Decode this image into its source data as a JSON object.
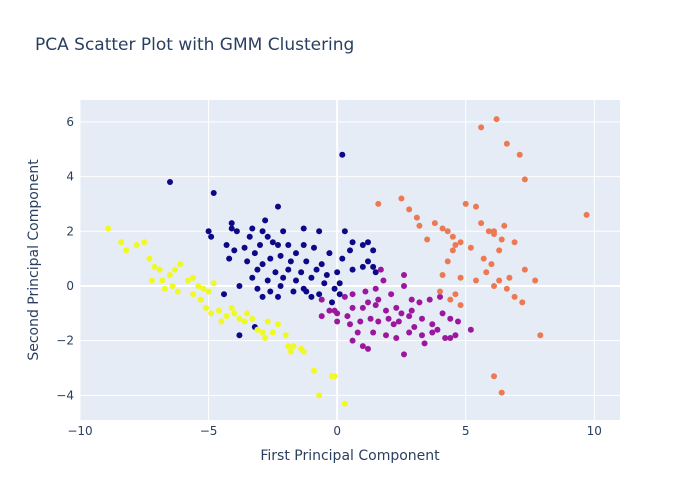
{
  "chart_data": {
    "type": "scatter",
    "title": "PCA Scatter Plot with GMM Clustering",
    "xlabel": "First Principal Component",
    "ylabel": "Second Principal Component",
    "xlim": [
      -10,
      11
    ],
    "ylim": [
      -4.9,
      6.8
    ],
    "xticks": [
      -10,
      -5,
      0,
      5,
      10
    ],
    "yticks": [
      -4,
      -2,
      0,
      2,
      4,
      6
    ],
    "grid": true,
    "legend": "none",
    "colors": {
      "plot_bg": "#e5ecf6",
      "grid": "#ffffff",
      "text": "#2a3f5f"
    },
    "series": [
      {
        "color": "#0d0887",
        "points": [
          [
            -6.5,
            3.8
          ],
          [
            -4.8,
            3.4
          ],
          [
            0.2,
            4.8
          ],
          [
            -2.3,
            2.9
          ],
          [
            -2.8,
            2.4
          ],
          [
            -4.1,
            2.3
          ],
          [
            -4.1,
            2.1
          ],
          [
            -5.0,
            2.0
          ],
          [
            -3.9,
            2.0
          ],
          [
            -3.3,
            2.1
          ],
          [
            -2.9,
            2.0
          ],
          [
            -2.1,
            2.0
          ],
          [
            -1.3,
            2.1
          ],
          [
            -0.7,
            2.0
          ],
          [
            0.3,
            2.0
          ],
          [
            -4.9,
            1.8
          ],
          [
            -3.4,
            1.8
          ],
          [
            -2.7,
            1.8
          ],
          [
            -2.5,
            1.6
          ],
          [
            -1.9,
            1.5
          ],
          [
            -1.3,
            1.5
          ],
          [
            -0.9,
            1.4
          ],
          [
            -4.3,
            1.5
          ],
          [
            -3.6,
            1.4
          ],
          [
            -3.0,
            1.5
          ],
          [
            -2.3,
            1.5
          ],
          [
            0.6,
            1.6
          ],
          [
            1.2,
            1.6
          ],
          [
            -4.0,
            1.3
          ],
          [
            -3.2,
            1.2
          ],
          [
            -2.6,
            1.0
          ],
          [
            -2.2,
            1.1
          ],
          [
            -1.6,
            1.2
          ],
          [
            -0.3,
            1.2
          ],
          [
            0.5,
            1.3
          ],
          [
            1.0,
            1.5
          ],
          [
            1.4,
            1.3
          ],
          [
            -4.2,
            1.0
          ],
          [
            -3.5,
            0.9
          ],
          [
            -2.9,
            0.8
          ],
          [
            -1.8,
            0.9
          ],
          [
            -1.2,
            0.9
          ],
          [
            -0.6,
            0.8
          ],
          [
            0.2,
            1.0
          ],
          [
            1.2,
            0.9
          ],
          [
            -3.1,
            0.6
          ],
          [
            -2.4,
            0.5
          ],
          [
            -1.9,
            0.6
          ],
          [
            -1.4,
            0.5
          ],
          [
            -0.8,
            0.6
          ],
          [
            0.6,
            0.6
          ],
          [
            1.0,
            0.7
          ],
          [
            1.4,
            0.7
          ],
          [
            -3.3,
            0.3
          ],
          [
            -2.7,
            0.2
          ],
          [
            -2.1,
            0.3
          ],
          [
            -1.6,
            0.2
          ],
          [
            -1.0,
            0.3
          ],
          [
            -0.4,
            0.4
          ],
          [
            0.0,
            0.5
          ],
          [
            1.5,
            0.5
          ],
          [
            -3.8,
            0.0
          ],
          [
            -3.1,
            -0.1
          ],
          [
            -2.6,
            -0.2
          ],
          [
            -2.2,
            0.0
          ],
          [
            -1.7,
            -0.2
          ],
          [
            -1.3,
            -0.1
          ],
          [
            -0.5,
            0.1
          ],
          [
            0.1,
            0.1
          ],
          [
            -2.9,
            -0.4
          ],
          [
            -2.3,
            -0.4
          ],
          [
            -1.0,
            -0.4
          ],
          [
            -0.7,
            -0.3
          ],
          [
            0.1,
            -0.3
          ],
          [
            -4.4,
            -0.3
          ],
          [
            -0.2,
            -0.6
          ],
          [
            -3.2,
            -1.5
          ],
          [
            -3.8,
            -1.8
          ],
          [
            -1.2,
            -0.2
          ],
          [
            -0.1,
            -0.1
          ]
        ]
      },
      {
        "color": "#9c179e",
        "points": [
          [
            -0.6,
            -0.5
          ],
          [
            -0.1,
            -0.9
          ],
          [
            0.3,
            -0.4
          ],
          [
            0.6,
            -0.3
          ],
          [
            1.1,
            -0.2
          ],
          [
            1.5,
            -0.1
          ],
          [
            2.1,
            -0.3
          ],
          [
            2.6,
            0.4
          ],
          [
            -0.3,
            -0.9
          ],
          [
            0.0,
            -1.0
          ],
          [
            0.6,
            -0.8
          ],
          [
            1.0,
            -0.8
          ],
          [
            1.2,
            -0.6
          ],
          [
            1.6,
            -0.5
          ],
          [
            1.9,
            -0.9
          ],
          [
            2.3,
            -0.8
          ],
          [
            2.5,
            -1.0
          ],
          [
            2.9,
            -0.9
          ],
          [
            3.2,
            -0.6
          ],
          [
            3.6,
            -0.5
          ],
          [
            4.0,
            -0.4
          ],
          [
            -0.6,
            -1.1
          ],
          [
            0.0,
            -1.3
          ],
          [
            0.5,
            -1.4
          ],
          [
            0.9,
            -1.3
          ],
          [
            1.3,
            -1.2
          ],
          [
            1.6,
            -1.3
          ],
          [
            2.0,
            -1.2
          ],
          [
            2.4,
            -1.3
          ],
          [
            2.8,
            -1.1
          ],
          [
            3.3,
            -1.2
          ],
          [
            3.7,
            -1.4
          ],
          [
            4.1,
            -1.0
          ],
          [
            4.4,
            -1.2
          ],
          [
            4.7,
            -1.3
          ],
          [
            5.2,
            -1.6
          ],
          [
            0.8,
            -1.7
          ],
          [
            1.4,
            -1.7
          ],
          [
            1.9,
            -1.8
          ],
          [
            2.3,
            -1.9
          ],
          [
            2.8,
            -1.7
          ],
          [
            3.3,
            -1.8
          ],
          [
            3.7,
            -1.7
          ],
          [
            4.2,
            -1.9
          ],
          [
            4.6,
            -1.8
          ],
          [
            0.6,
            -2.0
          ],
          [
            1.0,
            -2.2
          ],
          [
            1.2,
            -2.3
          ],
          [
            2.6,
            -2.5
          ],
          [
            3.4,
            -2.1
          ],
          [
            4.4,
            -1.9
          ],
          [
            1.7,
            0.6
          ],
          [
            1.8,
            0.2
          ],
          [
            2.6,
            0.0
          ],
          [
            2.9,
            -0.5
          ],
          [
            3.9,
            -1.6
          ],
          [
            0.4,
            -1.1
          ],
          [
            1.5,
            -0.7
          ],
          [
            2.2,
            -1.4
          ],
          [
            3.0,
            -1.5
          ]
        ]
      },
      {
        "color": "#ed7953",
        "points": [
          [
            5.6,
            5.8
          ],
          [
            6.2,
            6.1
          ],
          [
            6.6,
            5.2
          ],
          [
            7.1,
            4.8
          ],
          [
            7.3,
            3.9
          ],
          [
            9.7,
            2.6
          ],
          [
            5.0,
            3.0
          ],
          [
            5.4,
            2.9
          ],
          [
            2.5,
            3.2
          ],
          [
            2.8,
            2.8
          ],
          [
            1.6,
            3.0
          ],
          [
            3.1,
            2.5
          ],
          [
            3.8,
            2.3
          ],
          [
            4.1,
            2.1
          ],
          [
            4.3,
            2.0
          ],
          [
            4.5,
            1.8
          ],
          [
            4.8,
            1.6
          ],
          [
            5.6,
            2.3
          ],
          [
            6.1,
            2.0
          ],
          [
            6.5,
            2.2
          ],
          [
            6.1,
            1.9
          ],
          [
            6.4,
            1.7
          ],
          [
            5.2,
            1.4
          ],
          [
            4.6,
            1.5
          ],
          [
            3.5,
            1.7
          ],
          [
            3.2,
            2.2
          ],
          [
            6.3,
            1.3
          ],
          [
            5.7,
            1.0
          ],
          [
            6.0,
            0.8
          ],
          [
            5.8,
            0.5
          ],
          [
            6.3,
            0.2
          ],
          [
            6.1,
            0.0
          ],
          [
            6.6,
            -0.1
          ],
          [
            6.9,
            -0.4
          ],
          [
            7.2,
            -0.6
          ],
          [
            7.7,
            0.2
          ],
          [
            7.3,
            0.6
          ],
          [
            4.3,
            0.9
          ],
          [
            4.1,
            0.4
          ],
          [
            4.8,
            0.3
          ],
          [
            5.4,
            0.2
          ],
          [
            4.6,
            -0.3
          ],
          [
            4.0,
            -0.2
          ],
          [
            4.4,
            -0.5
          ],
          [
            4.8,
            -0.7
          ],
          [
            7.9,
            -1.8
          ],
          [
            6.1,
            -3.3
          ],
          [
            6.4,
            -3.9
          ],
          [
            6.9,
            1.6
          ],
          [
            5.9,
            2.0
          ],
          [
            4.5,
            1.3
          ],
          [
            6.7,
            0.3
          ]
        ]
      },
      {
        "color": "#f0f921",
        "points": [
          [
            -8.9,
            2.1
          ],
          [
            -8.4,
            1.6
          ],
          [
            -8.2,
            1.3
          ],
          [
            -7.8,
            1.5
          ],
          [
            -7.5,
            1.6
          ],
          [
            -7.3,
            1.0
          ],
          [
            -7.1,
            0.7
          ],
          [
            -6.9,
            0.6
          ],
          [
            -7.2,
            0.2
          ],
          [
            -6.8,
            0.2
          ],
          [
            -6.5,
            0.4
          ],
          [
            -6.3,
            0.6
          ],
          [
            -6.4,
            0.0
          ],
          [
            -6.2,
            -0.2
          ],
          [
            -6.1,
            0.8
          ],
          [
            -5.8,
            0.2
          ],
          [
            -5.6,
            0.3
          ],
          [
            -5.4,
            0.0
          ],
          [
            -5.2,
            -0.1
          ],
          [
            -5.0,
            -0.2
          ],
          [
            -4.8,
            0.1
          ],
          [
            -5.6,
            -0.3
          ],
          [
            -5.3,
            -0.5
          ],
          [
            -5.1,
            -0.8
          ],
          [
            -4.9,
            -1.0
          ],
          [
            -4.6,
            -0.9
          ],
          [
            -4.3,
            -1.1
          ],
          [
            -4.0,
            -1.0
          ],
          [
            -3.8,
            -1.2
          ],
          [
            -3.5,
            -1.0
          ],
          [
            -3.3,
            -1.2
          ],
          [
            -3.1,
            -1.6
          ],
          [
            -2.9,
            -1.7
          ],
          [
            -2.8,
            -1.9
          ],
          [
            -2.5,
            -1.7
          ],
          [
            -2.3,
            -1.4
          ],
          [
            -2.0,
            -1.8
          ],
          [
            -1.9,
            -2.2
          ],
          [
            -1.8,
            -2.4
          ],
          [
            -1.7,
            -2.2
          ],
          [
            -1.4,
            -2.3
          ],
          [
            -1.3,
            -2.4
          ],
          [
            -0.9,
            -3.1
          ],
          [
            -0.7,
            -4.0
          ],
          [
            -0.2,
            -3.3
          ],
          [
            -0.1,
            -3.3
          ],
          [
            0.3,
            -4.3
          ],
          [
            -4.1,
            -0.8
          ],
          [
            -3.6,
            -1.3
          ],
          [
            -6.7,
            -0.1
          ],
          [
            -2.7,
            -1.3
          ],
          [
            -4.5,
            -1.3
          ]
        ]
      }
    ]
  }
}
